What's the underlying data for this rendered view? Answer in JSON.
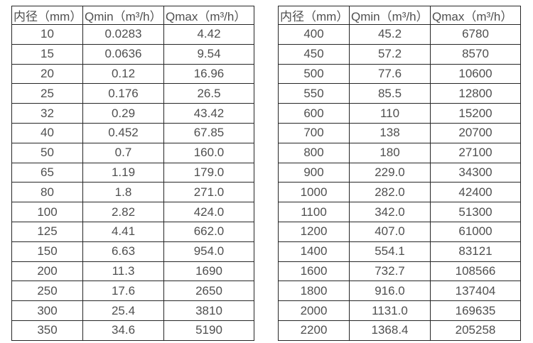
{
  "colors": {
    "background": "#ffffff",
    "border": "#262626",
    "text": "#4f4f4f"
  },
  "chart_data": [
    {
      "type": "table",
      "title": "",
      "headers": [
        "内径（mm）",
        "Qmin（m³/h）",
        "Qmax（m³/h）"
      ],
      "rows": [
        [
          "10",
          "0.0283",
          "4.42"
        ],
        [
          "15",
          "0.0636",
          "9.54"
        ],
        [
          "20",
          "0.12",
          "16.96"
        ],
        [
          "25",
          "0.176",
          "26.5"
        ],
        [
          "32",
          "0.29",
          "43.42"
        ],
        [
          "40",
          "0.452",
          "67.85"
        ],
        [
          "50",
          "0.7",
          "160.0"
        ],
        [
          "65",
          "1.19",
          "179.0"
        ],
        [
          "80",
          "1.8",
          "271.0"
        ],
        [
          "100",
          "2.82",
          "424.0"
        ],
        [
          "125",
          "4.41",
          "662.0"
        ],
        [
          "150",
          "6.63",
          "954.0"
        ],
        [
          "200",
          "11.3",
          "1690"
        ],
        [
          "250",
          "17.6",
          "2650"
        ],
        [
          "300",
          "25.4",
          "3810"
        ],
        [
          "350",
          "34.6",
          "5190"
        ]
      ]
    },
    {
      "type": "table",
      "title": "",
      "headers": [
        "内径（mm）",
        "Qmin（m³/h）",
        "Qmax（m³/h）"
      ],
      "rows": [
        [
          "400",
          "45.2",
          "6780"
        ],
        [
          "450",
          "57.2",
          "8570"
        ],
        [
          "500",
          "77.6",
          "10600"
        ],
        [
          "550",
          "85.5",
          "12800"
        ],
        [
          "600",
          "110",
          "15200"
        ],
        [
          "700",
          "138",
          "20700"
        ],
        [
          "800",
          "180",
          "27100"
        ],
        [
          "900",
          "229.0",
          "34300"
        ],
        [
          "1000",
          "282.0",
          "42400"
        ],
        [
          "1100",
          "342.0",
          "51300"
        ],
        [
          "1200",
          "407.0",
          "61000"
        ],
        [
          "1400",
          "554.1",
          "83121"
        ],
        [
          "1600",
          "732.7",
          "108566"
        ],
        [
          "1800",
          "916.0",
          "137404"
        ],
        [
          "2000",
          "1131.0",
          "169635"
        ],
        [
          "2200",
          "1368.4",
          "205258"
        ]
      ]
    }
  ]
}
